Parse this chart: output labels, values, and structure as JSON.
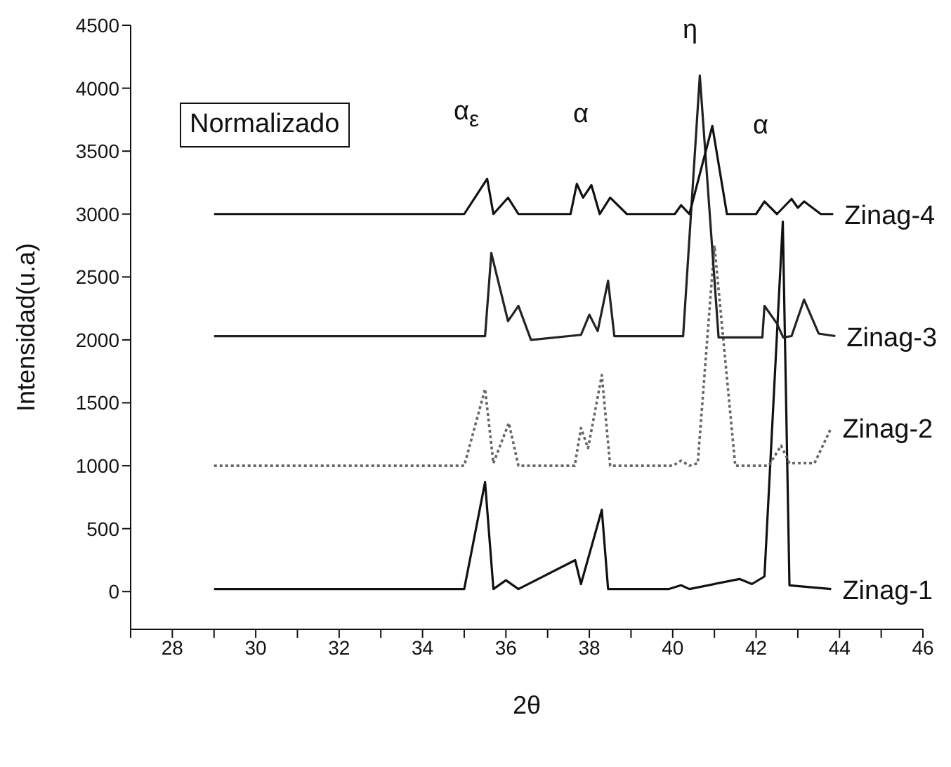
{
  "chart_data": {
    "type": "line",
    "xlabel": "2θ",
    "ylabel": "Intensidad(u.a)",
    "xlim": [
      27,
      46
    ],
    "ylim": [
      -300,
      4500
    ],
    "xticks": [
      {
        "value": 27,
        "label": null
      },
      28,
      {
        "value": 29,
        "label": null
      },
      30,
      {
        "value": 31,
        "label": null
      },
      32,
      {
        "value": 33,
        "label": null
      },
      34,
      {
        "value": 35,
        "label": null
      },
      36,
      {
        "value": 37,
        "label": null
      },
      38,
      {
        "value": 39,
        "label": null
      },
      40,
      {
        "value": 41,
        "label": null
      },
      42,
      {
        "value": 43,
        "label": null
      },
      44,
      {
        "value": 45,
        "label": null
      },
      46
    ],
    "yticks": [
      0,
      500,
      1000,
      1500,
      2000,
      2500,
      3000,
      3500,
      4000,
      4500
    ],
    "grid": false,
    "legend": false,
    "marker": "none",
    "series": [
      {
        "name": "Zinag-1",
        "color": "#111111",
        "line_style": "solid",
        "x": [
          29,
          35.0,
          35.5,
          35.7,
          36.0,
          36.3,
          37.66,
          37.8,
          38.3,
          38.45,
          39.9,
          40.2,
          40.4,
          41.6,
          41.9,
          42.2,
          42.64,
          42.8,
          43.8
        ],
        "values": [
          20,
          20,
          870,
          20,
          90,
          20,
          250,
          60,
          650,
          20,
          20,
          50,
          20,
          100,
          60,
          120,
          2940,
          50,
          20
        ]
      },
      {
        "name": "Zinag-2",
        "color": "#666666",
        "line_style": "dotted",
        "x": [
          29,
          35.0,
          35.5,
          35.7,
          36.07,
          36.3,
          37.65,
          37.8,
          37.97,
          38.3,
          38.5,
          40.0,
          40.2,
          40.4,
          40.6,
          41.0,
          41.5,
          42.3,
          42.6,
          42.8,
          43.4,
          43.8
        ],
        "values": [
          1000,
          1000,
          1610,
          1020,
          1340,
          1000,
          1000,
          1300,
          1140,
          1720,
          1000,
          1000,
          1040,
          1000,
          1020,
          2750,
          1000,
          1000,
          1160,
          1020,
          1020,
          1300
        ]
      },
      {
        "name": "Zinag-3",
        "color": "#222222",
        "line_style": "solid",
        "x": [
          29,
          35.5,
          35.65,
          36.05,
          36.3,
          36.6,
          37.8,
          38.0,
          38.2,
          38.45,
          38.6,
          40.25,
          40.65,
          41.1,
          42.15,
          42.2,
          42.5,
          42.65,
          42.85,
          43.15,
          43.5,
          43.9
        ],
        "values": [
          2030,
          2030,
          2690,
          2150,
          2270,
          2000,
          2040,
          2200,
          2070,
          2470,
          2030,
          2030,
          4100,
          2020,
          2020,
          2270,
          2130,
          2020,
          2030,
          2320,
          2050,
          2030
        ]
      },
      {
        "name": "Zinag-4",
        "color": "#111111",
        "line_style": "solid",
        "x": [
          29,
          35.0,
          35.55,
          35.7,
          36.05,
          36.3,
          37.55,
          37.7,
          37.85,
          38.05,
          38.25,
          38.5,
          38.9,
          40.05,
          40.2,
          40.4,
          40.95,
          41.3,
          42.0,
          42.2,
          42.5,
          42.85,
          43.0,
          43.15,
          43.55,
          43.85
        ],
        "values": [
          3000,
          3000,
          3280,
          3000,
          3130,
          3000,
          3000,
          3240,
          3130,
          3230,
          3000,
          3130,
          3000,
          3000,
          3070,
          3000,
          3700,
          3000,
          3000,
          3100,
          3000,
          3120,
          3050,
          3100,
          3000,
          3000
        ]
      }
    ],
    "annotations": [
      "Normalizado",
      "α$_{ε}$",
      "α",
      "η",
      "α"
    ]
  }
}
